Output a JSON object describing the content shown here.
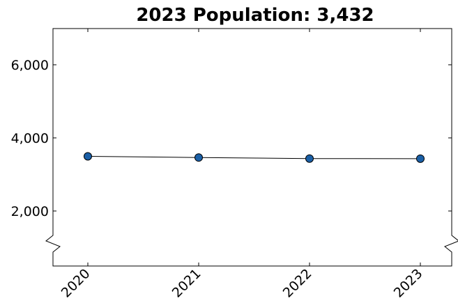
{
  "chart_data": {
    "type": "line",
    "title": "2023 Population: 3,432",
    "xlabel": "",
    "ylabel": "",
    "x": [
      2020,
      2021,
      2022,
      2023
    ],
    "x_tick_labels": [
      "2020",
      "2021",
      "2022",
      "2023"
    ],
    "series": [
      {
        "values": [
          3495,
          3463,
          3434,
          3432
        ]
      }
    ],
    "y_ticks": [
      2000,
      4000,
      6000
    ],
    "y_tick_labels": [
      "2,000",
      "4,000",
      "6,000"
    ],
    "ylim": [
      1000,
      7000
    ],
    "y_axis_break": true,
    "grid": false,
    "colors": {
      "marker_fill": "#1a5fa6",
      "marker_stroke": "#000000",
      "line": "#000000"
    }
  }
}
